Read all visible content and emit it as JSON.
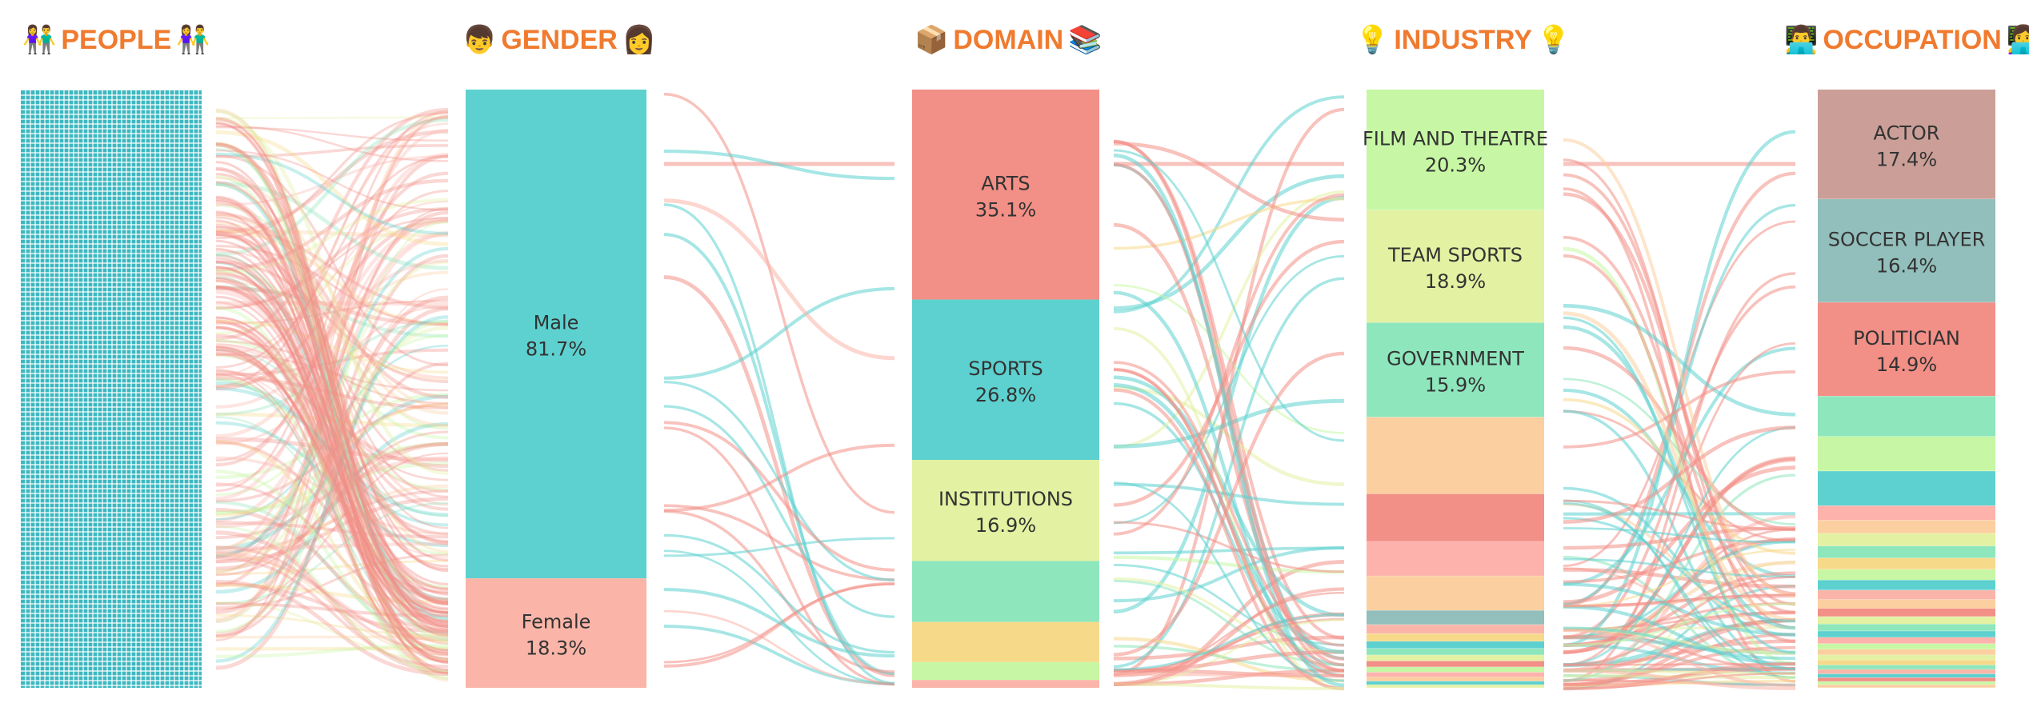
{
  "headers": [
    {
      "key": "people",
      "title": "PEOPLE",
      "emoji_left": "👫",
      "emoji_right": "👫",
      "icon": "people-icon"
    },
    {
      "key": "gender",
      "title": "GENDER",
      "emoji_left": "👦",
      "emoji_right": "👩",
      "icon": "person-icon"
    },
    {
      "key": "domain",
      "title": "DOMAIN",
      "emoji_left": "📦",
      "emoji_right": "📚",
      "icon": "books-icon"
    },
    {
      "key": "industry",
      "title": "INDUSTRY",
      "emoji_left": "💡",
      "emoji_right": "💡",
      "icon": "lightbulb-icon"
    },
    {
      "key": "occupation",
      "title": "OCCUPATION",
      "emoji_left": "👨‍💻",
      "emoji_right": "👩‍💻",
      "icon": "laptop-icon"
    }
  ],
  "colors": {
    "accent": "#f07a2e",
    "people_tile": "#3db8c0",
    "teal": "#5dd1cf",
    "salmon": "#f28f86",
    "peach": "#fab5a8",
    "lime": "#e3f1a2",
    "green": "#c7f7a4",
    "mint": "#8ee6bc",
    "orange": "#fbcfa0",
    "yellow": "#f7d98a",
    "rosybrown": "#cb9f98",
    "grayteal": "#92bfbb",
    "pink": "#fdb2ac"
  },
  "chart_data": {
    "type": "sankey",
    "columns": [
      {
        "name": "GENDER",
        "segments": [
          {
            "label": "Male",
            "pct": 81.7,
            "pct_label": "81.7%",
            "color": "teal"
          },
          {
            "label": "Female",
            "pct": 18.3,
            "pct_label": "18.3%",
            "color": "peach"
          }
        ]
      },
      {
        "name": "DOMAIN",
        "segments": [
          {
            "label": "ARTS",
            "pct": 35.1,
            "pct_label": "35.1%",
            "color": "salmon"
          },
          {
            "label": "SPORTS",
            "pct": 26.8,
            "pct_label": "26.8%",
            "color": "teal"
          },
          {
            "label": "INSTITUTIONS",
            "pct": 16.9,
            "pct_label": "16.9%",
            "color": "lime"
          },
          {
            "label": "",
            "pct": 10.2,
            "pct_label": "",
            "color": "mint"
          },
          {
            "label": "",
            "pct": 6.7,
            "pct_label": "",
            "color": "yellow"
          },
          {
            "label": "",
            "pct": 3.0,
            "pct_label": "",
            "color": "green"
          },
          {
            "label": "",
            "pct": 1.3,
            "pct_label": "",
            "color": "peach"
          }
        ]
      },
      {
        "name": "INDUSTRY",
        "segments": [
          {
            "label": "FILM AND THEATRE",
            "pct": 20.3,
            "pct_label": "20.3%",
            "color": "green"
          },
          {
            "label": "TEAM SPORTS",
            "pct": 18.9,
            "pct_label": "18.9%",
            "color": "lime"
          },
          {
            "label": "GOVERNMENT",
            "pct": 15.9,
            "pct_label": "15.9%",
            "color": "mint"
          },
          {
            "label": "",
            "pct": 12.9,
            "pct_label": "",
            "color": "orange"
          },
          {
            "label": "",
            "pct": 8.0,
            "pct_label": "",
            "color": "salmon"
          },
          {
            "label": "",
            "pct": 5.8,
            "pct_label": "",
            "color": "pink"
          },
          {
            "label": "",
            "pct": 5.8,
            "pct_label": "",
            "color": "orange"
          },
          {
            "label": "",
            "pct": 2.4,
            "pct_label": "",
            "color": "grayteal"
          },
          {
            "label": "",
            "pct": 1.5,
            "pct_label": "",
            "color": "peach"
          },
          {
            "label": "",
            "pct": 1.3,
            "pct_label": "",
            "color": "yellow"
          },
          {
            "label": "",
            "pct": 1.2,
            "pct_label": "",
            "color": "teal"
          },
          {
            "label": "",
            "pct": 1.1,
            "pct_label": "",
            "color": "mint"
          },
          {
            "label": "",
            "pct": 1.0,
            "pct_label": "",
            "color": "lime"
          },
          {
            "label": "",
            "pct": 1.0,
            "pct_label": "",
            "color": "salmon"
          },
          {
            "label": "",
            "pct": 0.9,
            "pct_label": "",
            "color": "green"
          },
          {
            "label": "",
            "pct": 0.8,
            "pct_label": "",
            "color": "pink"
          },
          {
            "label": "",
            "pct": 0.7,
            "pct_label": "",
            "color": "orange"
          },
          {
            "label": "",
            "pct": 0.6,
            "pct_label": "",
            "color": "teal"
          },
          {
            "label": "",
            "pct": 0.5,
            "pct_label": "",
            "color": "lime"
          }
        ]
      },
      {
        "name": "OCCUPATION",
        "segments": [
          {
            "label": "ACTOR",
            "pct": 17.4,
            "pct_label": "17.4%",
            "color": "rosybrown"
          },
          {
            "label": "SOCCER PLAYER",
            "pct": 16.4,
            "pct_label": "16.4%",
            "color": "grayteal"
          },
          {
            "label": "POLITICIAN",
            "pct": 14.9,
            "pct_label": "14.9%",
            "color": "salmon"
          },
          {
            "label": "",
            "pct": 6.4,
            "pct_label": "",
            "color": "mint"
          },
          {
            "label": "",
            "pct": 5.5,
            "pct_label": "",
            "color": "green"
          },
          {
            "label": "",
            "pct": 5.5,
            "pct_label": "",
            "color": "teal"
          },
          {
            "label": "",
            "pct": 2.3,
            "pct_label": "",
            "color": "pink"
          },
          {
            "label": "",
            "pct": 2.1,
            "pct_label": "",
            "color": "orange"
          },
          {
            "label": "",
            "pct": 2.0,
            "pct_label": "",
            "color": "lime"
          },
          {
            "label": "",
            "pct": 1.9,
            "pct_label": "",
            "color": "mint"
          },
          {
            "label": "",
            "pct": 1.8,
            "pct_label": "",
            "color": "yellow"
          },
          {
            "label": "",
            "pct": 1.7,
            "pct_label": "",
            "color": "green"
          },
          {
            "label": "",
            "pct": 1.6,
            "pct_label": "",
            "color": "teal"
          },
          {
            "label": "",
            "pct": 1.5,
            "pct_label": "",
            "color": "peach"
          },
          {
            "label": "",
            "pct": 1.4,
            "pct_label": "",
            "color": "orange"
          },
          {
            "label": "",
            "pct": 1.3,
            "pct_label": "",
            "color": "salmon"
          },
          {
            "label": "",
            "pct": 1.2,
            "pct_label": "",
            "color": "lime"
          },
          {
            "label": "",
            "pct": 1.1,
            "pct_label": "",
            "color": "mint"
          },
          {
            "label": "",
            "pct": 1.0,
            "pct_label": "",
            "color": "teal"
          },
          {
            "label": "",
            "pct": 1.0,
            "pct_label": "",
            "color": "pink"
          },
          {
            "label": "",
            "pct": 0.9,
            "pct_label": "",
            "color": "green"
          },
          {
            "label": "",
            "pct": 0.9,
            "pct_label": "",
            "color": "orange"
          },
          {
            "label": "",
            "pct": 0.8,
            "pct_label": "",
            "color": "lime"
          },
          {
            "label": "",
            "pct": 0.8,
            "pct_label": "",
            "color": "yellow"
          },
          {
            "label": "",
            "pct": 0.7,
            "pct_label": "",
            "color": "mint"
          },
          {
            "label": "",
            "pct": 0.7,
            "pct_label": "",
            "color": "peach"
          },
          {
            "label": "",
            "pct": 0.6,
            "pct_label": "",
            "color": "teal"
          },
          {
            "label": "",
            "pct": 0.6,
            "pct_label": "",
            "color": "salmon"
          },
          {
            "label": "",
            "pct": 0.5,
            "pct_label": "",
            "color": "green"
          },
          {
            "label": "",
            "pct": 0.5,
            "pct_label": "",
            "color": "orange"
          }
        ]
      }
    ]
  }
}
